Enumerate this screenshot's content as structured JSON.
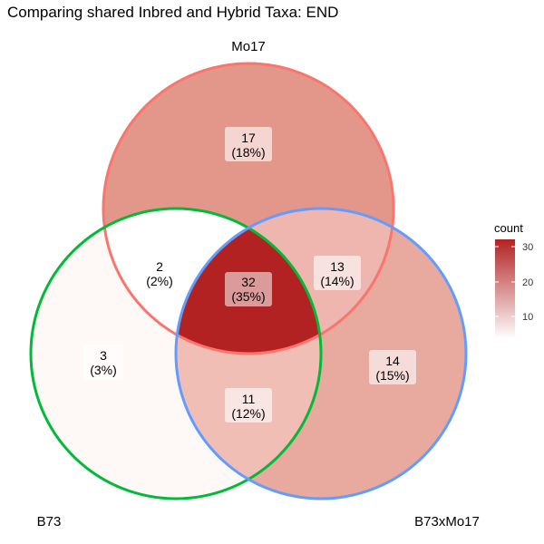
{
  "title": "Comparing shared Inbred and Hybrid Taxa: END",
  "sets": [
    {
      "name": "Mo17",
      "color": "#F8766D"
    },
    {
      "name": "B73",
      "color": "#00BA38"
    },
    {
      "name": "B73xMo17",
      "color": "#619CFF"
    }
  ],
  "chart_data": {
    "type": "venn",
    "regions": [
      {
        "sets": [
          "Mo17"
        ],
        "count": "17",
        "percent": "(18%)"
      },
      {
        "sets": [
          "B73"
        ],
        "count": "3",
        "percent": "(3%)"
      },
      {
        "sets": [
          "B73xMo17"
        ],
        "count": "14",
        "percent": "(15%)"
      },
      {
        "sets": [
          "Mo17",
          "B73"
        ],
        "count": "2",
        "percent": "(2%)"
      },
      {
        "sets": [
          "Mo17",
          "B73xMo17"
        ],
        "count": "13",
        "percent": "(14%)"
      },
      {
        "sets": [
          "B73",
          "B73xMo17"
        ],
        "count": "11",
        "percent": "(12%)"
      },
      {
        "sets": [
          "Mo17",
          "B73",
          "B73xMo17"
        ],
        "count": "32",
        "percent": "(35%)"
      }
    ],
    "legend": {
      "title": "count",
      "ticks": [
        "30",
        "20",
        "10"
      ],
      "low_color": "#FFFFFF",
      "high_color": "#B22222"
    }
  }
}
